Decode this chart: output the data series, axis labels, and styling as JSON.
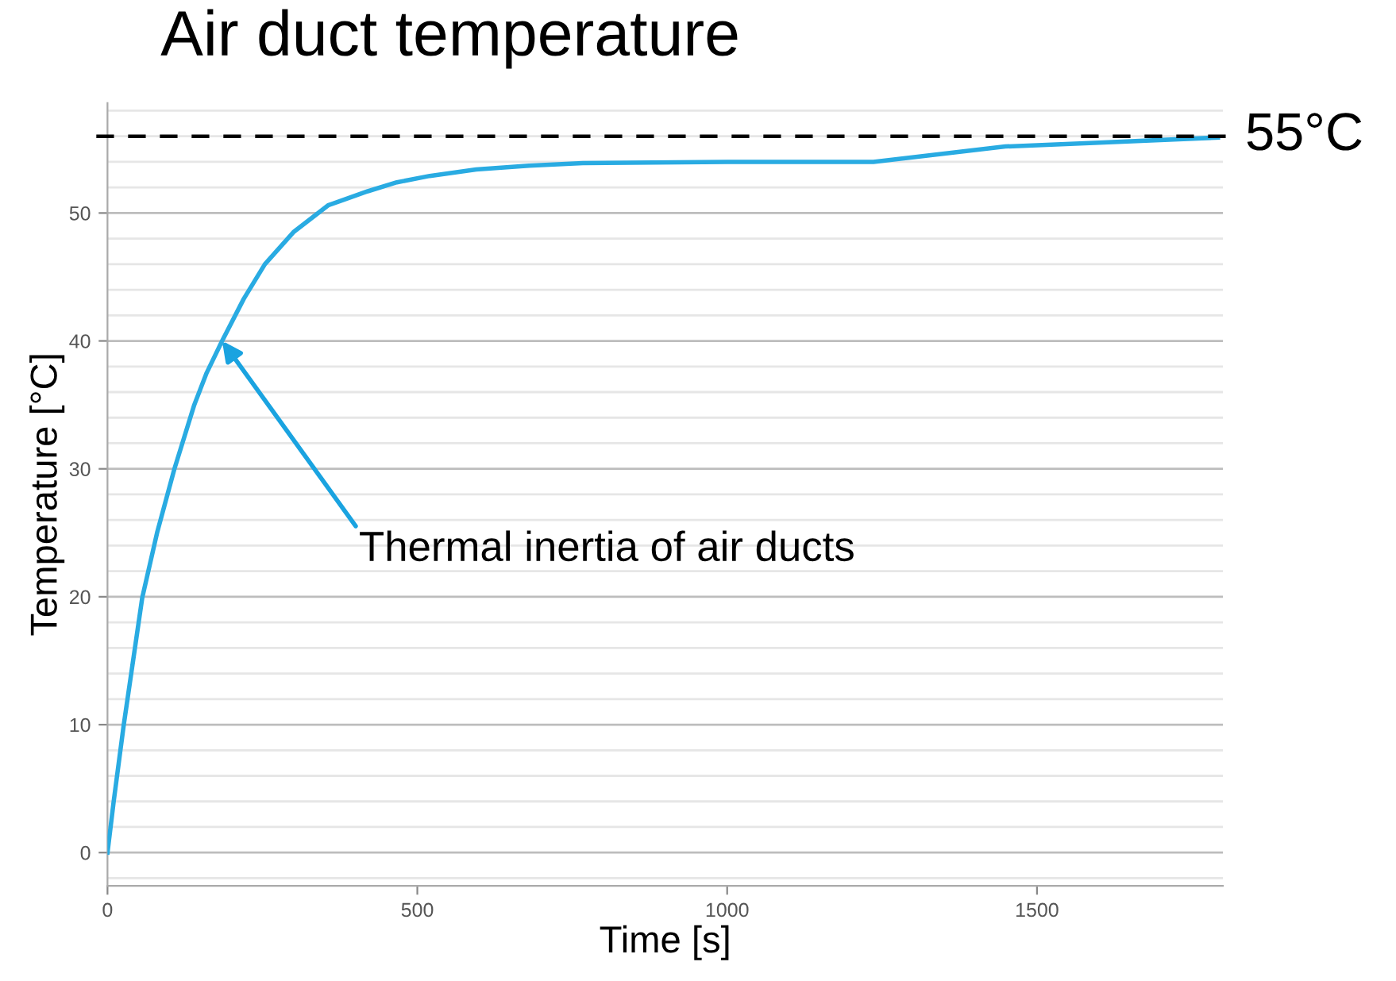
{
  "chart_data": {
    "type": "line",
    "title": "Air duct temperature",
    "xlabel": "Time [s]",
    "ylabel": "Temperature [°C]",
    "x": [
      0,
      10,
      26,
      56,
      80,
      108,
      140,
      160,
      185,
      220,
      254,
      300,
      356,
      420,
      467,
      520,
      595,
      680,
      767,
      1000,
      1236,
      1449,
      1600,
      1792
    ],
    "series": [
      {
        "color": "#29abe2",
        "values": [
          0,
          4,
          9.9,
          19.9,
          25,
          30,
          35,
          37.5,
          40,
          43.3,
          46,
          48.5,
          50.6,
          51.7,
          52.4,
          52.9,
          53.4,
          53.7,
          53.9,
          54.0,
          54.0,
          55.2,
          55.5,
          55.9
        ]
      }
    ],
    "xlim": [
      0,
      1800
    ],
    "xticks": [
      0,
      500,
      1000,
      1500
    ],
    "ylim": [
      -2.6,
      58.6
    ],
    "yticks": [
      {
        "value": -2,
        "label": null
      },
      0,
      {
        "value": 2,
        "label": null
      },
      {
        "value": 4,
        "label": null
      },
      {
        "value": 6,
        "label": null
      },
      {
        "value": 8,
        "label": null
      },
      10,
      {
        "value": 12,
        "label": null
      },
      {
        "value": 14,
        "label": null
      },
      {
        "value": 16,
        "label": null
      },
      {
        "value": 18,
        "label": null
      },
      20,
      {
        "value": 22,
        "label": null
      },
      {
        "value": 24,
        "label": null
      },
      {
        "value": 26,
        "label": null
      },
      {
        "value": 28,
        "label": null
      },
      30,
      {
        "value": 32,
        "label": null
      },
      {
        "value": 34,
        "label": null
      },
      {
        "value": 36,
        "label": null
      },
      {
        "value": 38,
        "label": null
      },
      40,
      {
        "value": 42,
        "label": null
      },
      {
        "value": 44,
        "label": null
      },
      {
        "value": 46,
        "label": null
      },
      {
        "value": 48,
        "label": null
      },
      50,
      {
        "value": 52,
        "label": null
      },
      {
        "value": 54,
        "label": null
      },
      {
        "value": 56,
        "label": null
      },
      {
        "value": 58,
        "label": null
      }
    ],
    "grid": "y",
    "legend": false,
    "marker": "none",
    "line_style": "solid",
    "ref_lines": [
      {
        "axis": "y",
        "value": 56,
        "label": "55°C",
        "color": "#000000",
        "line_style": "dashed"
      }
    ],
    "annotations": [
      {
        "text": "Thermal inertia of air ducts",
        "x": 185,
        "y": 40
      }
    ]
  }
}
